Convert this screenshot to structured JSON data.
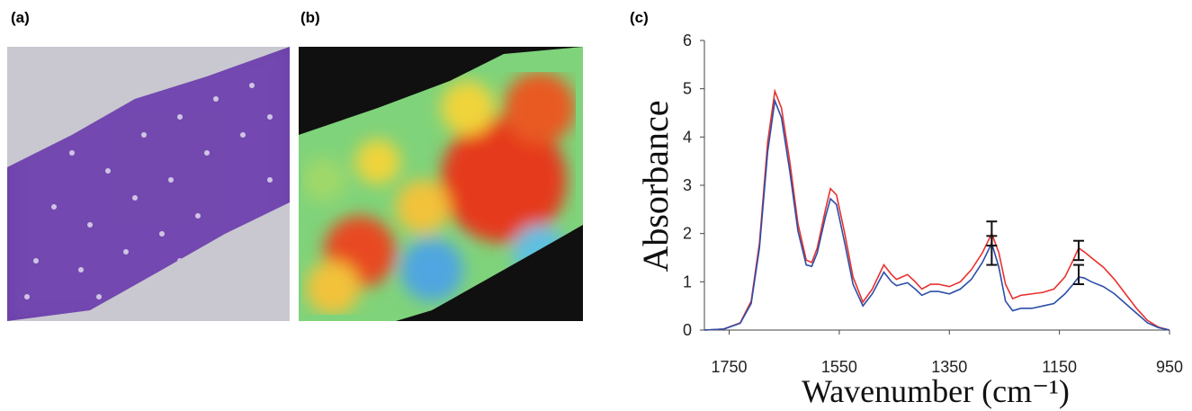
{
  "panel_labels": [
    "(a)",
    "(b)",
    "(c)"
  ],
  "chart_data": {
    "type": "line",
    "x_label": "Wavenumber (cm⁻¹)",
    "y_label": "Absorbance",
    "x": [
      1795,
      1760,
      1730,
      1710,
      1695,
      1680,
      1667,
      1655,
      1640,
      1625,
      1610,
      1600,
      1590,
      1575,
      1566,
      1555,
      1540,
      1525,
      1507,
      1490,
      1469,
      1455,
      1446,
      1436,
      1426,
      1412,
      1400,
      1384,
      1370,
      1350,
      1330,
      1310,
      1290,
      1273,
      1260,
      1248,
      1235,
      1220,
      1200,
      1180,
      1160,
      1140,
      1125,
      1115,
      1105,
      1092,
      1070,
      1050,
      1030,
      1010,
      990,
      970,
      950
    ],
    "series": [
      {
        "color": "#e8312f",
        "values": [
          0,
          0.02,
          0.15,
          0.6,
          1.8,
          3.9,
          4.95,
          4.6,
          3.5,
          2.2,
          1.45,
          1.4,
          1.7,
          2.5,
          2.93,
          2.8,
          2.0,
          1.1,
          0.58,
          0.85,
          1.35,
          1.15,
          1.05,
          1.1,
          1.15,
          1.0,
          0.85,
          0.95,
          0.95,
          0.9,
          1.0,
          1.25,
          1.6,
          2.0,
          1.6,
          0.95,
          0.65,
          0.72,
          0.75,
          0.78,
          0.85,
          1.1,
          1.45,
          1.7,
          1.62,
          1.5,
          1.3,
          1.05,
          0.75,
          0.45,
          0.2,
          0.06,
          0
        ]
      },
      {
        "color": "#2b4ea8",
        "values": [
          0,
          0.02,
          0.14,
          0.55,
          1.7,
          3.7,
          4.75,
          4.4,
          3.3,
          2.05,
          1.35,
          1.32,
          1.6,
          2.35,
          2.72,
          2.6,
          1.8,
          0.95,
          0.5,
          0.75,
          1.2,
          1.0,
          0.92,
          0.95,
          0.98,
          0.85,
          0.72,
          0.8,
          0.8,
          0.75,
          0.85,
          1.05,
          1.4,
          1.8,
          1.3,
          0.6,
          0.4,
          0.45,
          0.45,
          0.5,
          0.55,
          0.75,
          0.95,
          1.1,
          1.08,
          1.0,
          0.9,
          0.75,
          0.55,
          0.35,
          0.15,
          0.05,
          0
        ]
      }
    ],
    "error_bars": [
      {
        "x": 1273,
        "value": 2.0,
        "error": 0.25
      },
      {
        "x": 1273,
        "value": 1.65,
        "error": 0.3
      },
      {
        "x": 1115,
        "value": 1.65,
        "error": 0.2
      },
      {
        "x": 1115,
        "value": 1.15,
        "error": 0.2
      }
    ],
    "xlim": [
      1795,
      950
    ],
    "xticks": [
      1750,
      1550,
      1350,
      1150,
      950
    ],
    "ylim": [
      0,
      6
    ],
    "yticks": [
      0,
      1,
      2,
      3,
      4,
      5,
      6
    ],
    "grid": false
  }
}
